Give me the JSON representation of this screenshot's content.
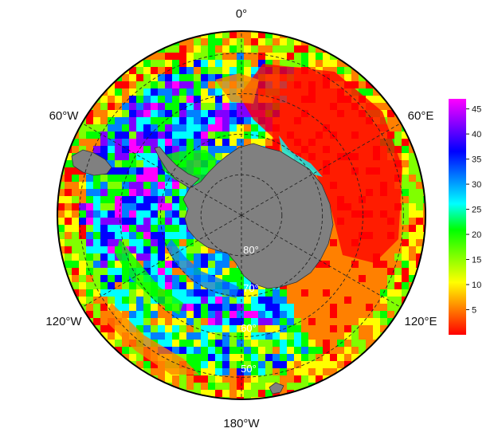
{
  "map": {
    "projection": "south-polar-stereographic",
    "longitude_labels": [
      "0°",
      "60°E",
      "120°E",
      "180°W",
      "120°W",
      "60°W"
    ],
    "latitude_labels": [
      "80°",
      "70°",
      "60°",
      "50°"
    ],
    "land_color": "#808080",
    "grid_style": "dashed",
    "colorscale": [
      "#ff0000",
      "#ff8000",
      "#ffff00",
      "#80ff00",
      "#00ff00",
      "#00ffff",
      "#0080ff",
      "#0000ff",
      "#8000ff",
      "#ff00ff"
    ],
    "colorbar": {
      "min": 0,
      "max": 47,
      "ticks": [
        "5",
        "10",
        "15",
        "20",
        "25",
        "30",
        "35",
        "40",
        "45"
      ],
      "tick_values": [
        5,
        10,
        15,
        20,
        25,
        30,
        35,
        40,
        45
      ]
    }
  }
}
